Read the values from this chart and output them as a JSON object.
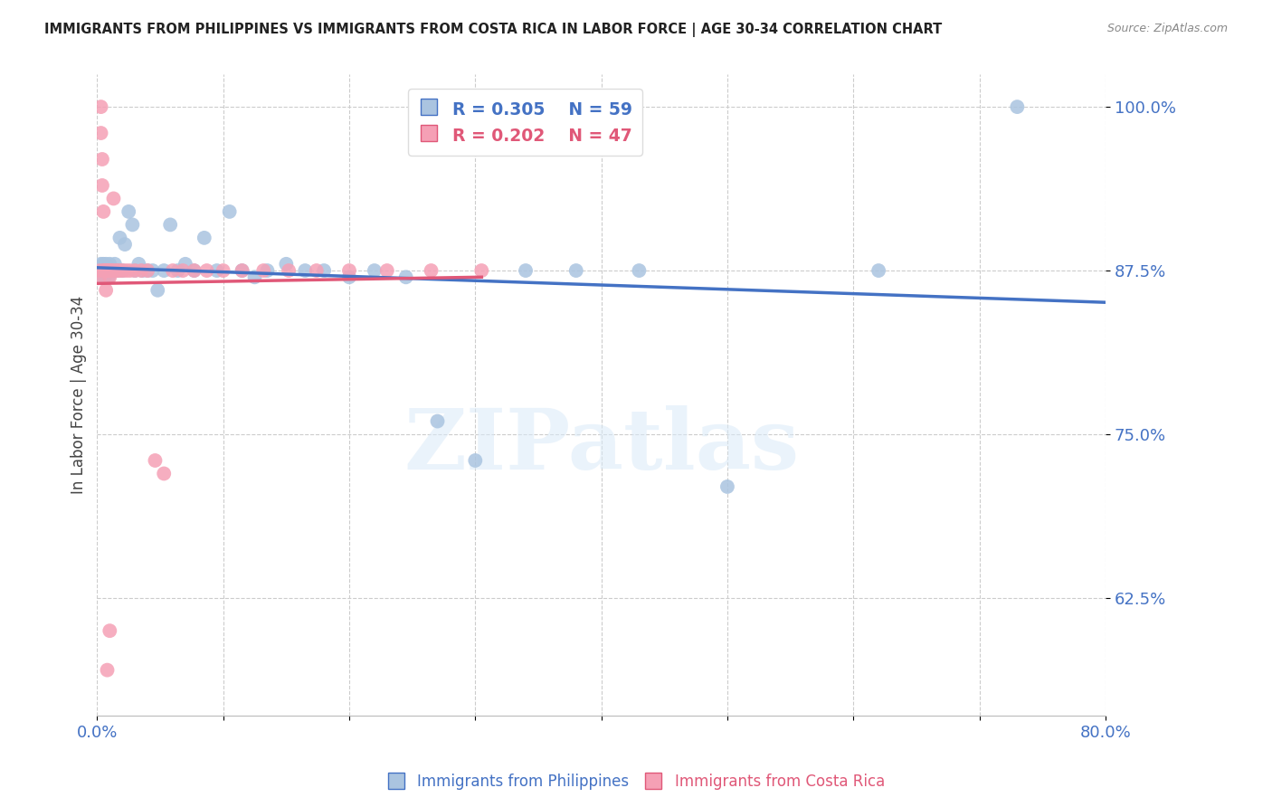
{
  "title": "IMMIGRANTS FROM PHILIPPINES VS IMMIGRANTS FROM COSTA RICA IN LABOR FORCE | AGE 30-34 CORRELATION CHART",
  "source": "Source: ZipAtlas.com",
  "ylabel": "In Labor Force | Age 30-34",
  "xmin": 0.0,
  "xmax": 0.8,
  "ymin": 0.535,
  "ymax": 1.025,
  "yticks": [
    0.625,
    0.75,
    0.875,
    1.0
  ],
  "xticks": [
    0.0,
    0.1,
    0.2,
    0.3,
    0.4,
    0.5,
    0.6,
    0.7,
    0.8
  ],
  "blue_color": "#aac4e0",
  "pink_color": "#f5a0b5",
  "blue_line_color": "#4472c4",
  "pink_line_color": "#e05878",
  "blue_R": 0.305,
  "blue_N": 59,
  "pink_R": 0.202,
  "pink_N": 47,
  "legend_label_blue": "Immigrants from Philippines",
  "legend_label_pink": "Immigrants from Costa Rica",
  "watermark_text": "ZIPatlas",
  "philippines_x": [
    0.002,
    0.003,
    0.003,
    0.004,
    0.004,
    0.005,
    0.005,
    0.006,
    0.006,
    0.007,
    0.007,
    0.008,
    0.008,
    0.009,
    0.009,
    0.01,
    0.01,
    0.011,
    0.012,
    0.013,
    0.014,
    0.015,
    0.016,
    0.018,
    0.02,
    0.022,
    0.025,
    0.028,
    0.03,
    0.033,
    0.036,
    0.04,
    0.044,
    0.048,
    0.053,
    0.058,
    0.064,
    0.07,
    0.077,
    0.085,
    0.095,
    0.105,
    0.115,
    0.125,
    0.135,
    0.15,
    0.165,
    0.18,
    0.2,
    0.22,
    0.245,
    0.27,
    0.3,
    0.34,
    0.38,
    0.43,
    0.5,
    0.62,
    0.73
  ],
  "philippines_y": [
    0.875,
    0.875,
    0.88,
    0.87,
    0.875,
    0.875,
    0.88,
    0.875,
    0.87,
    0.875,
    0.88,
    0.875,
    0.875,
    0.875,
    0.87,
    0.875,
    0.88,
    0.875,
    0.875,
    0.875,
    0.88,
    0.875,
    0.875,
    0.9,
    0.875,
    0.895,
    0.92,
    0.91,
    0.875,
    0.88,
    0.875,
    0.875,
    0.875,
    0.86,
    0.875,
    0.91,
    0.875,
    0.88,
    0.875,
    0.9,
    0.875,
    0.92,
    0.875,
    0.87,
    0.875,
    0.88,
    0.875,
    0.875,
    0.87,
    0.875,
    0.87,
    0.76,
    0.73,
    0.875,
    0.875,
    0.875,
    0.71,
    0.875,
    1.0
  ],
  "costarica_x": [
    0.002,
    0.002,
    0.003,
    0.003,
    0.004,
    0.004,
    0.005,
    0.005,
    0.006,
    0.006,
    0.007,
    0.007,
    0.008,
    0.008,
    0.009,
    0.009,
    0.01,
    0.01,
    0.011,
    0.012,
    0.013,
    0.014,
    0.016,
    0.018,
    0.02,
    0.023,
    0.026,
    0.03,
    0.035,
    0.04,
    0.046,
    0.053,
    0.06,
    0.068,
    0.077,
    0.087,
    0.1,
    0.115,
    0.132,
    0.152,
    0.174,
    0.2,
    0.23,
    0.265,
    0.305,
    0.01,
    0.008
  ],
  "costarica_y": [
    0.875,
    0.87,
    1.0,
    0.98,
    0.96,
    0.94,
    0.92,
    0.875,
    0.875,
    0.875,
    0.875,
    0.86,
    0.875,
    0.875,
    0.875,
    0.875,
    0.875,
    0.87,
    0.875,
    0.875,
    0.93,
    0.875,
    0.875,
    0.875,
    0.875,
    0.875,
    0.875,
    0.875,
    0.875,
    0.875,
    0.73,
    0.72,
    0.875,
    0.875,
    0.875,
    0.875,
    0.875,
    0.875,
    0.875,
    0.875,
    0.875,
    0.875,
    0.875,
    0.875,
    0.875,
    0.6,
    0.57
  ]
}
